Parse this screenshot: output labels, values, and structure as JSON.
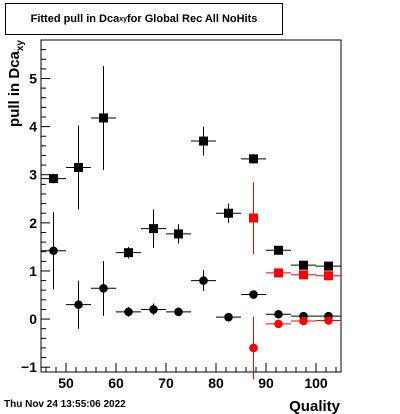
{
  "title": {
    "prefix": "Fitted pull in Dca",
    "subscript": "xy",
    "suffix": " for Global Rec All NoHits"
  },
  "timestamp": "Thu Nov 24 13:55:06 2022",
  "colors": {
    "black": "#000000",
    "red": "#ff0000"
  },
  "chart_data": {
    "type": "scatter",
    "title": "Fitted pull in Dca_xy for Global Rec All NoHits",
    "xlabel": "Quality",
    "ylabel": "pull in Dca_xy",
    "xlim": [
      45,
      105
    ],
    "ylim": [
      -1.1,
      5.8
    ],
    "x_ticks": [
      50,
      60,
      70,
      80,
      90,
      100
    ],
    "y_ticks": [
      -1,
      0,
      1,
      2,
      3,
      4,
      5
    ],
    "series": [
      {
        "marker": "square",
        "color": "#000000",
        "points": [
          {
            "x": 47.5,
            "y": 2.92,
            "ey": 0.1,
            "ex": 2.5
          },
          {
            "x": 52.5,
            "y": 3.15,
            "ey": 0.87,
            "ex": 2.5
          },
          {
            "x": 57.5,
            "y": 4.18,
            "ey": 1.08,
            "ex": 2.5
          },
          {
            "x": 62.5,
            "y": 1.38,
            "ey": 0.12,
            "ex": 2.5
          },
          {
            "x": 67.5,
            "y": 1.88,
            "ey": 0.4,
            "ex": 2.5
          },
          {
            "x": 72.5,
            "y": 1.77,
            "ey": 0.2,
            "ex": 2.5
          },
          {
            "x": 77.5,
            "y": 3.7,
            "ey": 0.3,
            "ex": 2.5
          },
          {
            "x": 82.5,
            "y": 2.2,
            "ey": 0.2,
            "ex": 2.5
          },
          {
            "x": 87.5,
            "y": 3.33,
            "ey": 0.1,
            "ex": 2.5
          },
          {
            "x": 92.5,
            "y": 1.43,
            "ey": 0.05,
            "ex": 2.5
          },
          {
            "x": 97.5,
            "y": 1.12,
            "ey": 0.05,
            "ex": 2.5
          },
          {
            "x": 102.5,
            "y": 1.1,
            "ey": 0.05,
            "ex": 2.5
          }
        ]
      },
      {
        "marker": "circle",
        "color": "#000000",
        "points": [
          {
            "x": 47.5,
            "y": 1.42,
            "ey": 0.8,
            "ex": 2.5
          },
          {
            "x": 52.5,
            "y": 0.3,
            "ey": 0.5,
            "ex": 2.5
          },
          {
            "x": 57.5,
            "y": 0.64,
            "ey": 0.57,
            "ex": 2.5
          },
          {
            "x": 62.5,
            "y": 0.15,
            "ey": 0.1,
            "ex": 2.5
          },
          {
            "x": 67.5,
            "y": 0.2,
            "ey": 0.12,
            "ex": 2.5
          },
          {
            "x": 72.5,
            "y": 0.15,
            "ey": 0.08,
            "ex": 2.5
          },
          {
            "x": 77.5,
            "y": 0.8,
            "ey": 0.22,
            "ex": 2.5
          },
          {
            "x": 82.5,
            "y": 0.04,
            "ey": 0.05,
            "ex": 2.5
          },
          {
            "x": 87.5,
            "y": 0.51,
            "ey": 0.05,
            "ex": 2.5
          },
          {
            "x": 92.5,
            "y": 0.1,
            "ey": 0.03,
            "ex": 2.5
          },
          {
            "x": 97.5,
            "y": 0.06,
            "ey": 0.03,
            "ex": 2.5
          },
          {
            "x": 102.5,
            "y": 0.06,
            "ey": 0.03,
            "ex": 2.5
          }
        ]
      },
      {
        "marker": "square",
        "color": "#ff0000",
        "points": [
          {
            "x": 87.5,
            "y": 2.1,
            "ey": 0.75,
            "ex": 0
          },
          {
            "x": 92.5,
            "y": 0.96,
            "ey": 0.04,
            "ex": 2.5
          },
          {
            "x": 97.5,
            "y": 0.92,
            "ey": 0.04,
            "ex": 2.5
          },
          {
            "x": 102.5,
            "y": 0.9,
            "ey": 0.04,
            "ex": 2.5
          }
        ]
      },
      {
        "marker": "circle",
        "color": "#ff0000",
        "points": [
          {
            "x": 87.5,
            "y": -0.6,
            "ey": 0.65,
            "ex": 0
          },
          {
            "x": 92.5,
            "y": -0.1,
            "ey": 0.04,
            "ex": 2.5
          },
          {
            "x": 97.5,
            "y": -0.04,
            "ey": 0.04,
            "ex": 2.5
          },
          {
            "x": 102.5,
            "y": -0.03,
            "ey": 0.04,
            "ex": 2.5
          }
        ]
      }
    ]
  }
}
